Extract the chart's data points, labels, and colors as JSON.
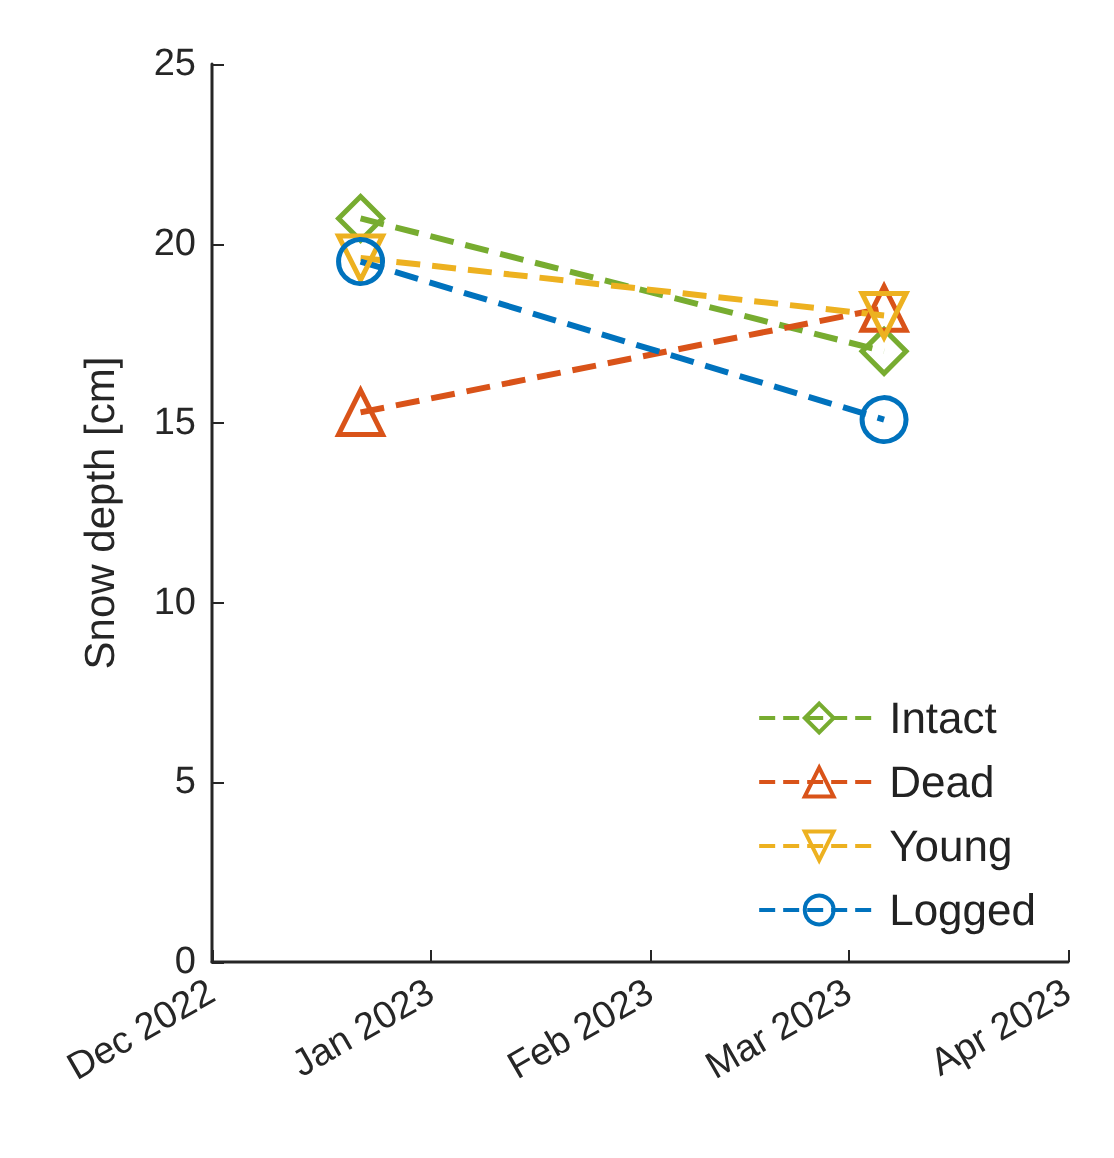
{
  "chart_data": {
    "type": "line",
    "ylabel": "Snow depth [cm]",
    "x": [
      "2022-12-22",
      "2023-03-06"
    ],
    "series": [
      {
        "name": "Intact",
        "color": "#77ac30",
        "marker": "diamond",
        "values": [
          20.7,
          17.0
        ]
      },
      {
        "name": "Dead",
        "color": "#d95319",
        "marker": "triangle",
        "values": [
          15.3,
          18.2
        ]
      },
      {
        "name": "Young",
        "color": "#edb120",
        "marker": "triangle-down",
        "values": [
          19.6,
          18.0
        ]
      },
      {
        "name": "Logged",
        "color": "#0072bd",
        "marker": "circle",
        "values": [
          19.5,
          15.1
        ]
      }
    ],
    "xlim": [
      "2022-12-01",
      "2023-04-01"
    ],
    "xticks": [
      {
        "value": "2022-12-01",
        "label": "Dec 2022"
      },
      {
        "value": "2023-01-01",
        "label": "Jan 2023"
      },
      {
        "value": "2023-02-01",
        "label": "Feb 2023"
      },
      {
        "value": "2023-03-01",
        "label": "Mar 2023"
      },
      {
        "value": "2023-04-01",
        "label": "Apr 2023"
      }
    ],
    "ylim": [
      0,
      25
    ],
    "yticks": [
      0,
      5,
      10,
      15,
      20,
      25
    ],
    "line_style": "dashed",
    "legend": "bottom right",
    "grid": false
  }
}
